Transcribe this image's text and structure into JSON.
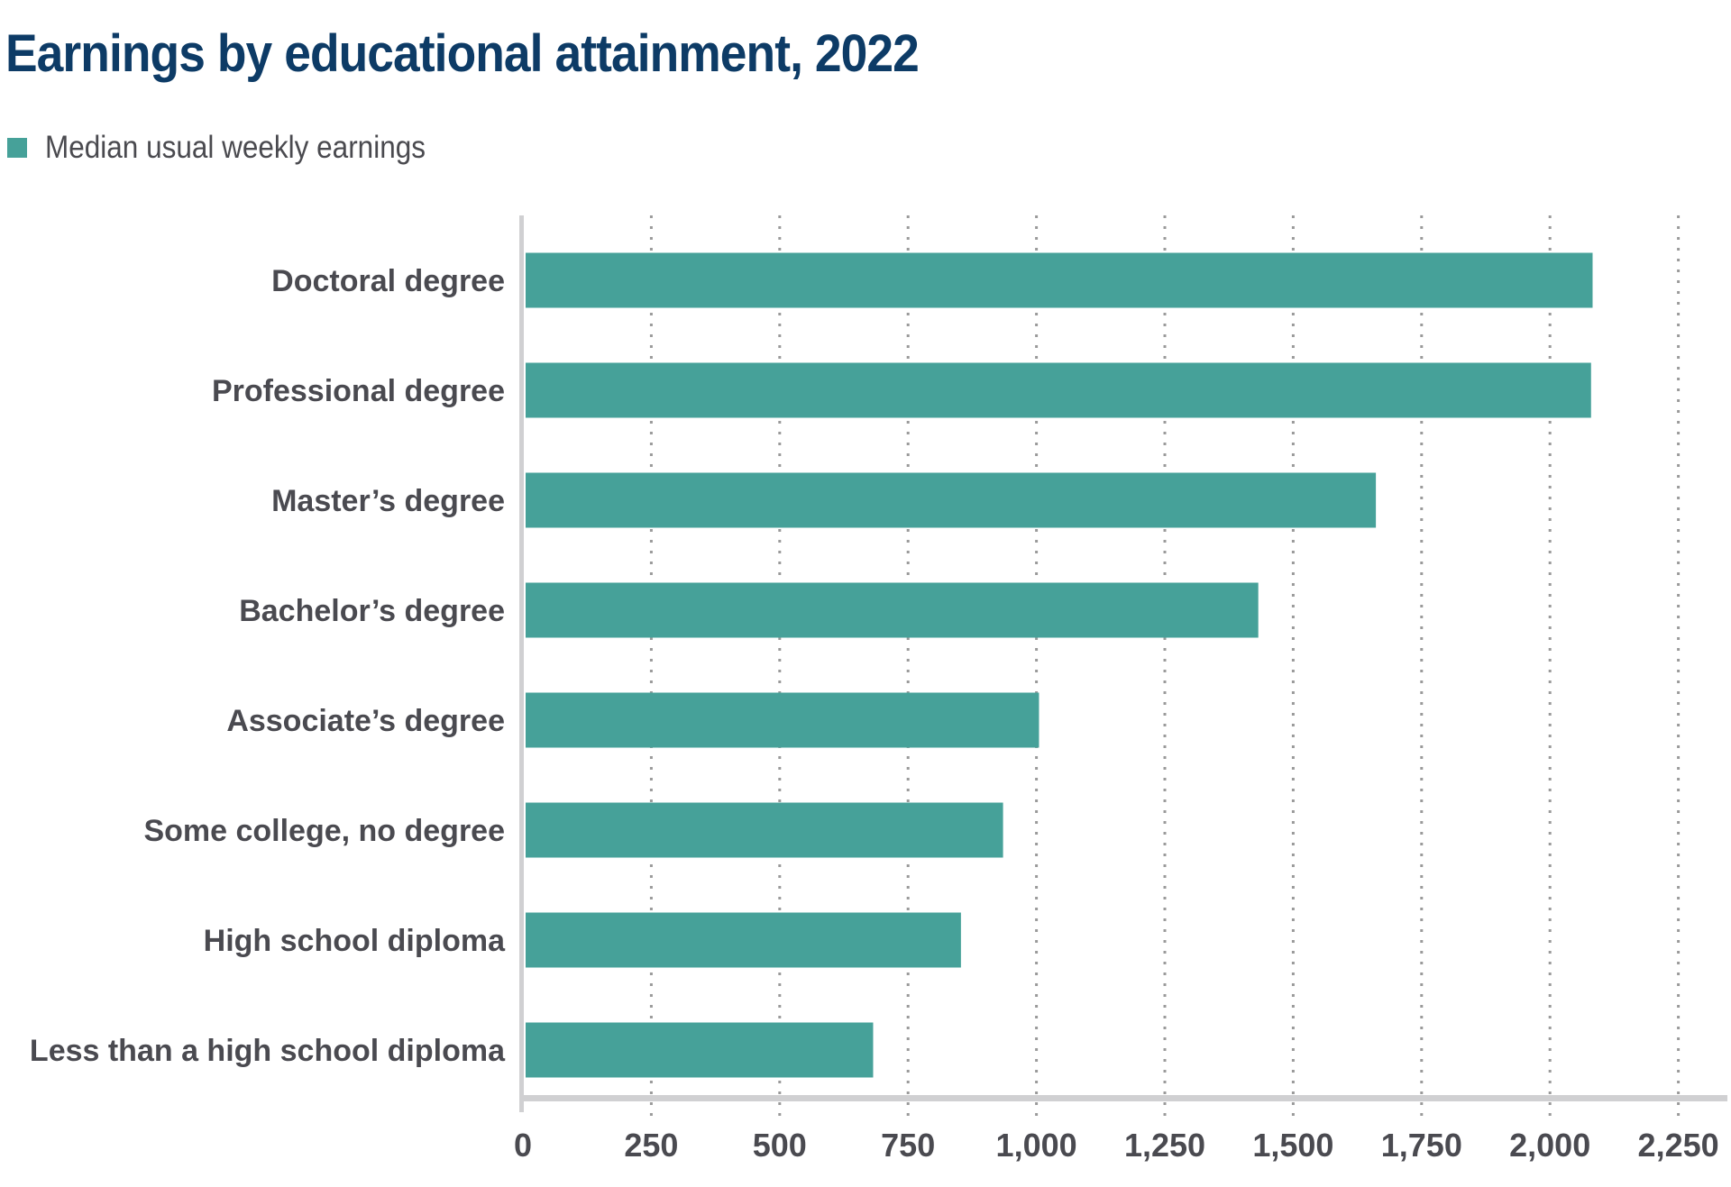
{
  "chart_data": {
    "type": "bar",
    "orientation": "horizontal",
    "title": "Earnings by educational attainment, 2022",
    "legend": [
      {
        "label": "Median usual weekly earnings",
        "color": "#46a199"
      }
    ],
    "legend_placement": "top-left",
    "categories": [
      "Doctoral degree",
      "Professional degree",
      "Master’s degree",
      "Bachelor’s degree",
      "Associate’s degree",
      "Some college, no degree",
      "High school diploma",
      "Less than a high school diploma"
    ],
    "series": [
      {
        "name": "Median usual weekly earnings",
        "values": [
          2083,
          2080,
          1661,
          1432,
          1005,
          935,
          853,
          682
        ]
      }
    ],
    "xlabel": "",
    "ylabel": "",
    "xlim": [
      0,
      2250
    ],
    "xticks": [
      0,
      250,
      500,
      750,
      1000,
      1250,
      1500,
      1750,
      2000,
      2250
    ],
    "xtick_labels": [
      "0",
      "250",
      "500",
      "750",
      "1,000",
      "1,250",
      "1,500",
      "1,750",
      "2,000",
      "2,250"
    ],
    "grid": "vertical dotted",
    "colors": {
      "bar": "#46a199",
      "title": "#0d3b66",
      "text": "#4a4a50",
      "axis": "#d0d0d2",
      "grid": "#9a9a9a"
    }
  }
}
